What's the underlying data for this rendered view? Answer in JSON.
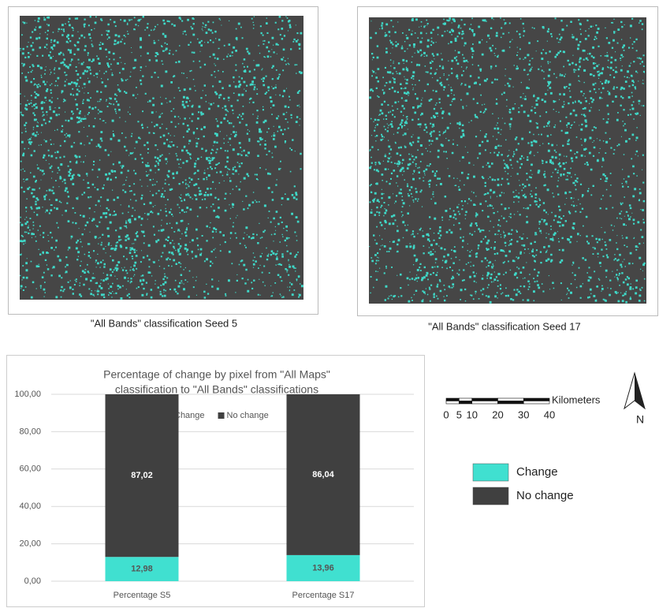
{
  "maps": [
    {
      "caption": "\"All Bands\" classification Seed 5"
    },
    {
      "caption": "\"All Bands\" classification Seed 17"
    }
  ],
  "chart_data": {
    "type": "bar",
    "stacked": true,
    "title": [
      "Percentage of change by pixel from \"All Maps\"",
      "classification to \"All Bands\" classifications"
    ],
    "categories": [
      "Percentage S5",
      "Percentage S17"
    ],
    "series": [
      {
        "name": "Change",
        "color": "#40e0d0",
        "values": [
          12.98,
          13.96
        ],
        "value_labels": [
          "12,98",
          "13,96"
        ]
      },
      {
        "name": "No change",
        "color": "#404040",
        "values": [
          87.02,
          86.04
        ],
        "value_labels": [
          "87,02",
          "86,04"
        ]
      }
    ],
    "ylim": [
      0,
      100
    ],
    "yticks": [
      {
        "value": 0,
        "label": "0,00"
      },
      {
        "value": 20,
        "label": "20,00"
      },
      {
        "value": 40,
        "label": "40,00"
      },
      {
        "value": 60,
        "label": "60,00"
      },
      {
        "value": 80,
        "label": "80,00"
      },
      {
        "value": 100,
        "label": "100,00"
      }
    ],
    "grid": true,
    "legend": "top"
  },
  "scale_bar": {
    "unit": "Kilometers",
    "ticks": [
      0,
      5,
      10,
      20,
      30,
      40
    ]
  },
  "north_arrow": "N",
  "map_legend": [
    {
      "label": "Change",
      "color": "#40e0d0"
    },
    {
      "label": "No change",
      "color": "#404040"
    }
  ]
}
